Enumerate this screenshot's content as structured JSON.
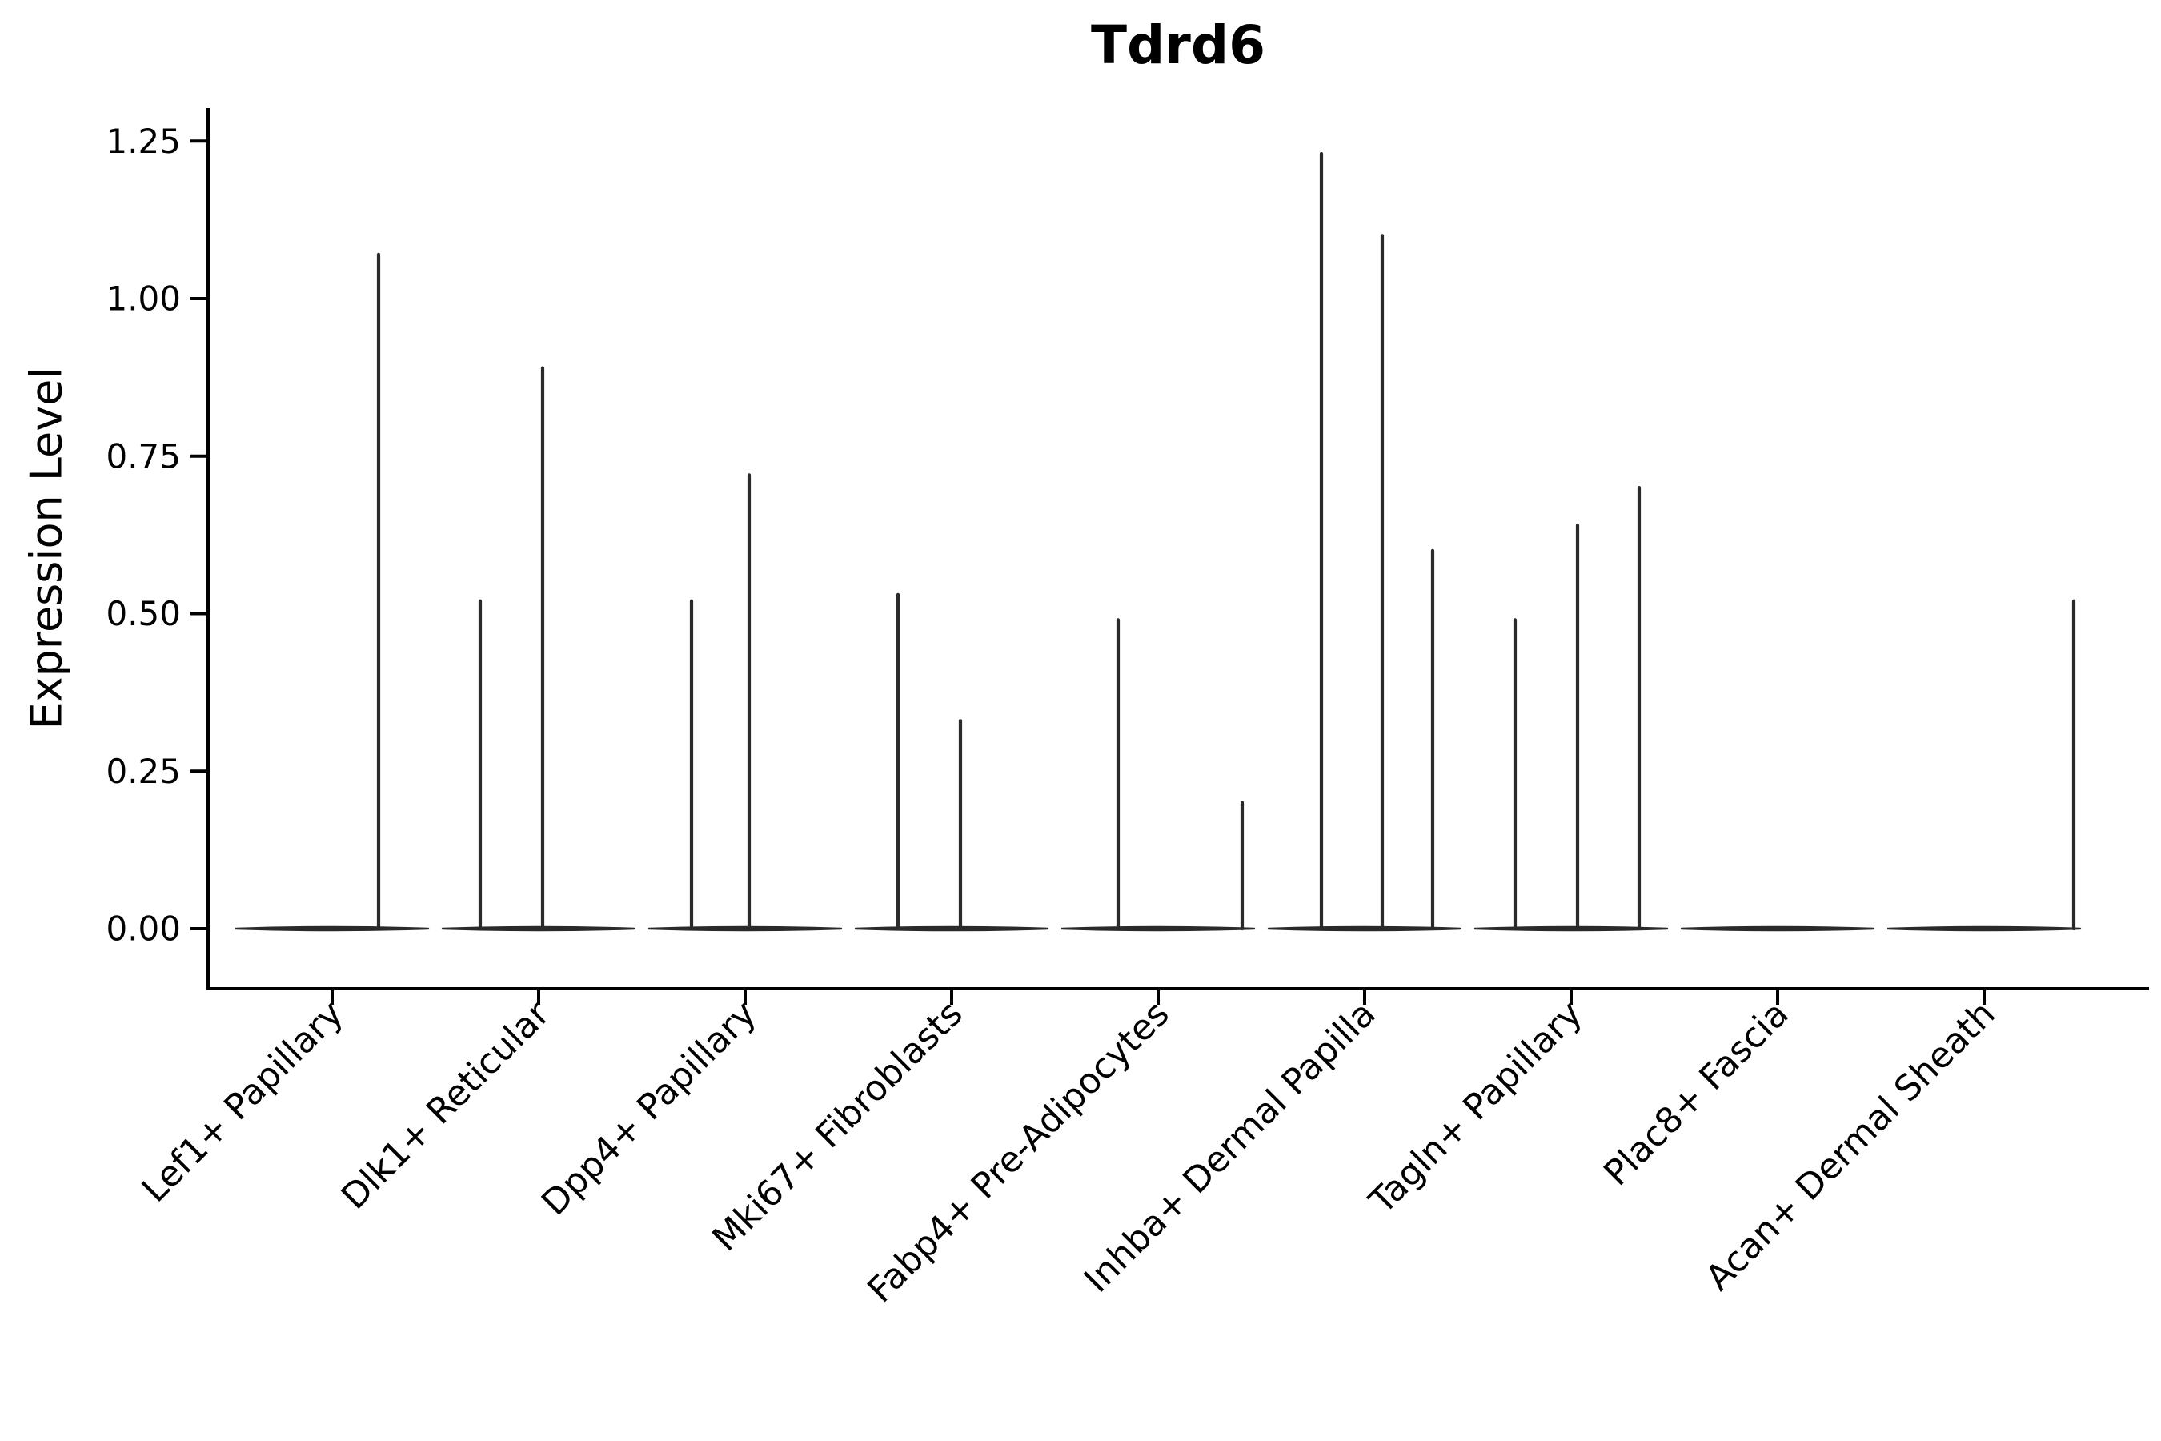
{
  "chart_data": {
    "type": "violin",
    "title": "Tdrd6",
    "ylabel": "Expression Level",
    "xlabel": "",
    "grid": false,
    "legend": false,
    "ylim": [
      -0.095,
      1.3
    ],
    "yticks": [
      {
        "value": 0.0,
        "label": "0.00"
      },
      {
        "value": 0.25,
        "label": "0.25"
      },
      {
        "value": 0.5,
        "label": "0.50"
      },
      {
        "value": 0.75,
        "label": "0.75"
      },
      {
        "value": 1.0,
        "label": "1.00"
      },
      {
        "value": 1.25,
        "label": "1.25"
      }
    ],
    "categories": [
      "Lef1+ Papillary",
      "Dlk1+ Reticular",
      "Dpp4+ Papillary",
      "Mki67+ Fibroblasts",
      "Fabp4+ Pre-Adipocytes",
      "Inhba+ Dermal Papilla",
      "Tagln+ Papillary",
      "Plac8+ Fascia",
      "Acan+ Dermal Sheath"
    ],
    "violins": [
      {
        "category": "Lef1+ Papillary",
        "baseline_value": 0.0,
        "spikes": [
          {
            "value": 1.07,
            "offset": 58
          }
        ]
      },
      {
        "category": "Dlk1+ Reticular",
        "baseline_value": 0.0,
        "spikes": [
          {
            "value": 0.52,
            "offset": -73
          },
          {
            "value": 0.89,
            "offset": 5
          }
        ]
      },
      {
        "category": "Dpp4+ Papillary",
        "baseline_value": 0.0,
        "spikes": [
          {
            "value": 0.52,
            "offset": -67
          },
          {
            "value": 0.72,
            "offset": 5
          }
        ]
      },
      {
        "category": "Mki67+ Fibroblasts",
        "baseline_value": 0.0,
        "spikes": [
          {
            "value": 0.53,
            "offset": -67
          },
          {
            "value": 0.33,
            "offset": 11
          }
        ]
      },
      {
        "category": "Fabp4+ Pre-Adipocytes",
        "baseline_value": 0.0,
        "spikes": [
          {
            "value": 0.49,
            "offset": -50
          },
          {
            "value": 0.2,
            "offset": 105
          }
        ]
      },
      {
        "category": "Inhba+ Dermal Papilla",
        "baseline_value": 0.0,
        "spikes": [
          {
            "value": 1.23,
            "offset": -54
          },
          {
            "value": 1.1,
            "offset": 22
          },
          {
            "value": 0.6,
            "offset": 85
          }
        ]
      },
      {
        "category": "Tagln+ Papillary",
        "baseline_value": 0.0,
        "spikes": [
          {
            "value": 0.49,
            "offset": -70
          },
          {
            "value": 0.64,
            "offset": 8
          },
          {
            "value": 0.7,
            "offset": 85
          }
        ]
      },
      {
        "category": "Plac8+ Fascia",
        "baseline_value": 0.0,
        "spikes": []
      },
      {
        "category": "Acan+ Dermal Sheath",
        "baseline_value": 0.0,
        "spikes": [
          {
            "value": 0.52,
            "offset": 112
          }
        ]
      }
    ],
    "colors": {
      "violin": "#2a2a2a",
      "axis": "#000000",
      "background": "#ffffff"
    }
  }
}
